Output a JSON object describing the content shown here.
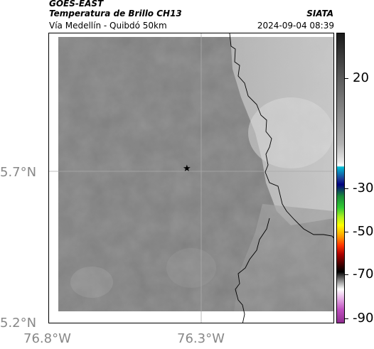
{
  "header": {
    "satellite": "GOES-EAST",
    "product": "Temperatura de Brillo CH13",
    "organization": "SIATA",
    "area": "Vía Medellín - Quibdó 50km",
    "datetime": "2024-09-04 08:39"
  },
  "map": {
    "lat_ticks": [
      "5.7°N",
      "5.2°N"
    ],
    "lon_ticks": [
      "76.8°W",
      "76.3°W"
    ],
    "marker_icon": "star-icon",
    "gridlines": true
  },
  "colorbar": {
    "tick_labels": [
      "20",
      "-30",
      "-50",
      "-70",
      "-90"
    ]
  }
}
